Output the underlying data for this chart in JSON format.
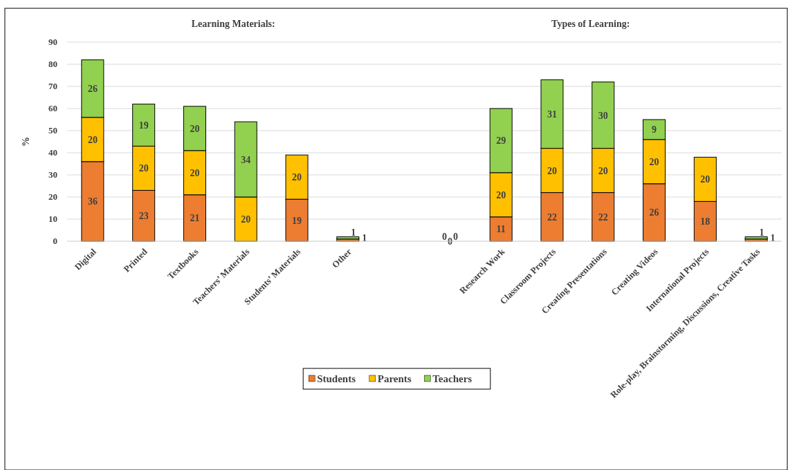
{
  "chart_data": {
    "type": "bar",
    "stacked": true,
    "annotations": [
      "Learning Materials:",
      "Types of Learning:"
    ],
    "ylabel": "%",
    "categories": [
      "Digital",
      "Printed",
      "Textbooks",
      "Teachers’ Materials",
      "Students’ Materials",
      "Other",
      null,
      null,
      "Research Work",
      "Classroom Projects",
      "Creating Presentations",
      "Creating Videos",
      "International Projects",
      "Role-play, Brainstorming, Discussions, Creative Tasks"
    ],
    "series": [
      {
        "name": "Students",
        "color": "#ed7d31",
        "values": [
          36,
          23,
          21,
          0,
          19,
          1,
          null,
          0,
          11,
          22,
          22,
          26,
          18,
          1
        ],
        "value_labels": [
          "36",
          "23",
          "21",
          null,
          "19",
          "1",
          null,
          "0",
          "11",
          "22",
          "22",
          "26",
          "18",
          "1"
        ]
      },
      {
        "name": "Parents",
        "color": "#ffc000",
        "values": [
          20,
          20,
          20,
          20,
          20,
          0,
          null,
          0,
          20,
          20,
          20,
          20,
          20,
          0
        ],
        "value_labels": [
          "20",
          "20",
          "20",
          "20",
          "20",
          null,
          null,
          "0",
          "20",
          "20",
          "20",
          "20",
          "20",
          null
        ]
      },
      {
        "name": "Teachers",
        "color": "#92d050",
        "values": [
          26,
          19,
          20,
          34,
          0,
          1,
          null,
          0,
          29,
          31,
          30,
          9,
          0,
          1
        ],
        "value_labels": [
          "26",
          "19",
          "20",
          "34",
          null,
          "1",
          null,
          "0",
          "29",
          "31",
          "30",
          "9",
          null,
          "1"
        ]
      }
    ],
    "ylim": [
      0,
      90
    ],
    "yticks": [
      0,
      10,
      20,
      30,
      40,
      50,
      60,
      70,
      80,
      90
    ],
    "grid": "y",
    "legend": "bottom"
  }
}
